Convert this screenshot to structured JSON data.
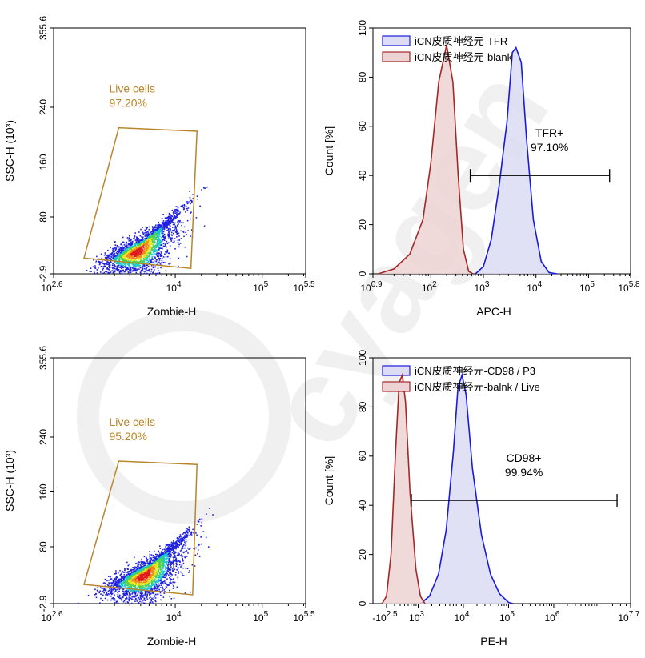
{
  "chart_data": [
    {
      "id": "dot1",
      "type": "scatter",
      "xlabel": "Zombie-H",
      "ylabel": "SSC-H (10³)",
      "x_ticks": [
        {
          "base": "10",
          "exp": "2.6",
          "v": 2.6
        },
        {
          "base": "10",
          "exp": "4",
          "v": 4
        },
        {
          "base": "10",
          "exp": "5",
          "v": 5
        },
        {
          "base": "10",
          "exp": "5.5",
          "v": 5.5
        }
      ],
      "y_ticks": [
        "-2.9",
        "80",
        "160",
        "240",
        "355.6"
      ],
      "xlim_log10": [
        2.6,
        5.5
      ],
      "ylim": [
        -2.9,
        355.6
      ],
      "gate": {
        "name": "Live cells",
        "percent": "97.20%",
        "polygon": [
          [
            2.95,
            20
          ],
          [
            3.35,
            210
          ],
          [
            4.25,
            205
          ],
          [
            4.18,
            5
          ]
        ]
      },
      "population": {
        "center_x_log10": 3.55,
        "center_y": 30,
        "n": 2600
      }
    },
    {
      "id": "hist1",
      "type": "area",
      "xlabel": "APC-H",
      "ylabel": "Count [%]",
      "x_ticks": [
        {
          "base": "10",
          "exp": "0.9",
          "v": 0.9
        },
        {
          "base": "10",
          "exp": "2",
          "v": 2
        },
        {
          "base": "10",
          "exp": "3",
          "v": 3
        },
        {
          "base": "10",
          "exp": "4",
          "v": 4
        },
        {
          "base": "10",
          "exp": "5",
          "v": 5
        },
        {
          "base": "10",
          "exp": "5.8",
          "v": 5.8
        }
      ],
      "y_ticks": [
        "0",
        "20",
        "40",
        "60",
        "80",
        "100"
      ],
      "xlim_log10": [
        0.9,
        5.8
      ],
      "ylim": [
        0,
        100
      ],
      "series": [
        {
          "name": "iCN皮质神经元-TFR",
          "color": "#1a1adb",
          "fill": "#dcdcf5",
          "curve": [
            [
              2.85,
              0
            ],
            [
              3.0,
              3
            ],
            [
              3.15,
              14
            ],
            [
              3.3,
              36
            ],
            [
              3.45,
              62
            ],
            [
              3.55,
              90
            ],
            [
              3.62,
              92
            ],
            [
              3.72,
              86
            ],
            [
              3.82,
              55
            ],
            [
              3.95,
              22
            ],
            [
              4.1,
              5
            ],
            [
              4.25,
              0.5
            ],
            [
              4.4,
              0
            ]
          ]
        },
        {
          "name": "iCN皮质神经元-blank",
          "color": "#a32828",
          "fill": "#ecd2d2",
          "curve": [
            [
              1.0,
              0
            ],
            [
              1.3,
              2
            ],
            [
              1.6,
              8
            ],
            [
              1.85,
              22
            ],
            [
              2.0,
              45
            ],
            [
              2.15,
              78
            ],
            [
              2.3,
              93
            ],
            [
              2.42,
              78
            ],
            [
              2.52,
              40
            ],
            [
              2.62,
              10
            ],
            [
              2.72,
              1
            ],
            [
              2.8,
              0
            ]
          ]
        }
      ],
      "marker": {
        "name": "TFR+",
        "percent": "97.10%",
        "x_range_log10": [
          2.75,
          5.4
        ],
        "y": 40
      }
    },
    {
      "id": "dot2",
      "type": "scatter",
      "xlabel": "Zombie-H",
      "ylabel": "SSC-H (10³)",
      "x_ticks": [
        {
          "base": "10",
          "exp": "2.6",
          "v": 2.6
        },
        {
          "base": "10",
          "exp": "4",
          "v": 4
        },
        {
          "base": "10",
          "exp": "5",
          "v": 5
        },
        {
          "base": "10",
          "exp": "5.5",
          "v": 5.5
        }
      ],
      "y_ticks": [
        "-2.9",
        "80",
        "160",
        "240",
        "355.6"
      ],
      "xlim_log10": [
        2.6,
        5.5
      ],
      "ylim": [
        -2.9,
        355.6
      ],
      "gate": {
        "name": "Live cells",
        "percent": "95.20%",
        "polygon": [
          [
            2.95,
            25
          ],
          [
            3.35,
            205
          ],
          [
            4.25,
            200
          ],
          [
            4.2,
            10
          ]
        ]
      },
      "population": {
        "center_x_log10": 3.62,
        "center_y": 38,
        "n": 2800
      }
    },
    {
      "id": "hist2",
      "type": "area",
      "xlabel": "PE-H",
      "ylabel": "Count [%]",
      "x_ticks": [
        {
          "base": "-10",
          "exp": "2.5",
          "v": 2.3
        },
        {
          "base": "10",
          "exp": "3",
          "v": 3
        },
        {
          "base": "10",
          "exp": "4",
          "v": 4
        },
        {
          "base": "10",
          "exp": "5",
          "v": 5
        },
        {
          "base": "10",
          "exp": "6",
          "v": 6
        },
        {
          "base": "10",
          "exp": "7.7",
          "v": 7.7
        }
      ],
      "y_ticks": [
        "0",
        "20",
        "40",
        "60",
        "80",
        "100"
      ],
      "xlim_log10": [
        2.0,
        7.7
      ],
      "ylim": [
        0,
        100
      ],
      "series": [
        {
          "name": "iCN皮质神经元-CD98 / P3",
          "color": "#1a1adb",
          "fill": "#dcdcf5",
          "curve": [
            [
              3.05,
              0
            ],
            [
              3.25,
              3
            ],
            [
              3.45,
              12
            ],
            [
              3.62,
              30
            ],
            [
              3.78,
              62
            ],
            [
              3.88,
              88
            ],
            [
              3.97,
              93
            ],
            [
              4.06,
              85
            ],
            [
              4.2,
              55
            ],
            [
              4.4,
              28
            ],
            [
              4.6,
              12
            ],
            [
              4.8,
              4
            ],
            [
              5.0,
              0.5
            ],
            [
              5.1,
              0
            ]
          ]
        },
        {
          "name": "iCN皮质神经元-balnk / Live",
          "color": "#a32828",
          "fill": "#ecd2d2",
          "curve": [
            [
              2.2,
              0
            ],
            [
              2.3,
              3
            ],
            [
              2.4,
              20
            ],
            [
              2.5,
              62
            ],
            [
              2.58,
              90
            ],
            [
              2.65,
              93
            ],
            [
              2.72,
              82
            ],
            [
              2.82,
              45
            ],
            [
              2.95,
              14
            ],
            [
              3.05,
              3
            ],
            [
              3.15,
              0
            ]
          ]
        }
      ],
      "marker": {
        "name": "CD98+",
        "percent": "99.94%",
        "x_range_log10": [
          2.85,
          7.4
        ],
        "y": 42
      }
    }
  ],
  "watermark": "cyagen"
}
